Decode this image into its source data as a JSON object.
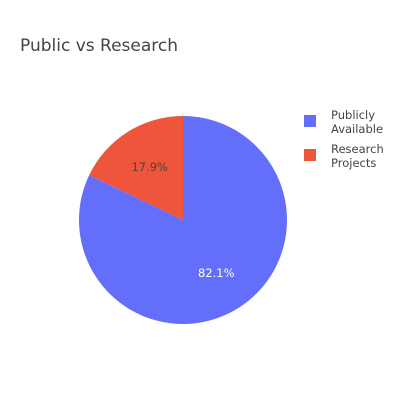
{
  "chart_data": {
    "type": "pie",
    "title": "Public vs Research",
    "categories": [
      "Publicly Available",
      "Research Projects"
    ],
    "values": [
      82.1,
      17.9
    ],
    "value_labels": [
      "82.1%",
      "17.9%"
    ],
    "colors": [
      "#636efa",
      "#ef553b"
    ],
    "label_colors": [
      "#ffffff",
      "#444444"
    ],
    "legend": {
      "placement": "right",
      "items": [
        {
          "lines": [
            "Publicly",
            "Available"
          ],
          "color": "#636efa"
        },
        {
          "lines": [
            "Research",
            "Projects"
          ],
          "color": "#ef553b"
        }
      ]
    }
  }
}
